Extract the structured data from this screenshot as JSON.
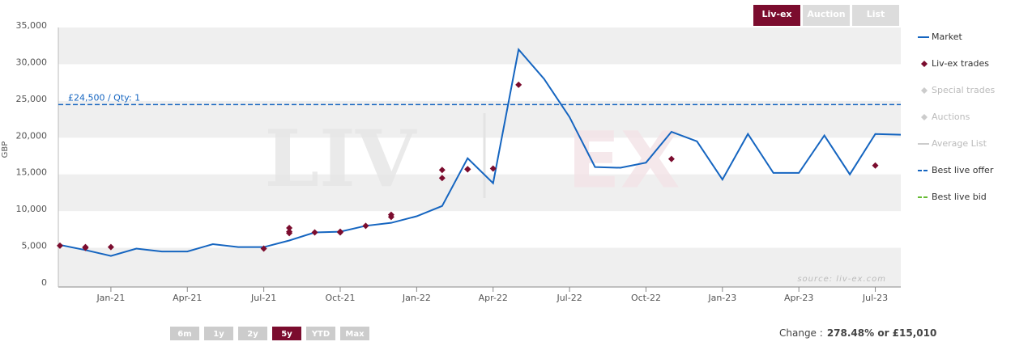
{
  "chart_data": {
    "type": "line",
    "y_label": "GBP",
    "watermark_left": "LIV",
    "watermark_right": "EX",
    "source": "source: liv-ex.com",
    "xlim": [
      "Nov-20",
      "Aug-23"
    ],
    "xticks": [
      "Jan-21",
      "Apr-21",
      "Jul-21",
      "Oct-21",
      "Jan-22",
      "Apr-22",
      "Jul-22",
      "Oct-22",
      "Jan-23",
      "Apr-23",
      "Jul-23"
    ],
    "ylim": [
      0,
      35000
    ],
    "yticks": [
      0,
      {
        "value": 5000,
        "label": "5,000"
      },
      {
        "value": 10000,
        "label": "10,000"
      },
      {
        "value": 15000,
        "label": "15,000"
      },
      {
        "value": 20000,
        "label": "20,000"
      },
      {
        "value": 25000,
        "label": "25,000"
      },
      {
        "value": 30000,
        "label": "30,000"
      },
      {
        "value": 35000,
        "label": "35,000"
      }
    ],
    "banded_grid": true,
    "series": [
      {
        "name": "Market",
        "kind": "line",
        "color": "#1565c0",
        "visible": true,
        "x": [
          "Nov-20",
          "Dec-20",
          "Jan-21",
          "Feb-21",
          "Mar-21",
          "Apr-21",
          "May-21",
          "Jun-21",
          "Jul-21",
          "Aug-21",
          "Sep-21",
          "Oct-21",
          "Nov-21",
          "Dec-21",
          "Jan-22",
          "Feb-22",
          "Mar-22",
          "Apr-22",
          "May-22",
          "Jun-22",
          "Jul-22",
          "Aug-22",
          "Sep-22",
          "Oct-22",
          "Nov-22",
          "Dec-22",
          "Jan-23",
          "Feb-23",
          "Mar-23",
          "Apr-23",
          "May-23",
          "Jun-23",
          "Jul-23",
          "Aug-23"
        ],
        "values": [
          5390,
          4700,
          3900,
          4900,
          4500,
          4500,
          5500,
          5100,
          5100,
          6000,
          7100,
          7200,
          8000,
          8400,
          9300,
          10700,
          17200,
          13800,
          32000,
          28000,
          22800,
          16000,
          15900,
          16600,
          20800,
          19500,
          14300,
          20500,
          15200,
          15200,
          20300,
          15000,
          20500,
          20400
        ]
      },
      {
        "name": "Liv-ex trades",
        "kind": "scatter",
        "color": "#7b0c2e",
        "visible": true,
        "x": [
          "Nov-20",
          "Dec-20",
          "Dec-20",
          "Jan-21",
          "Jul-21",
          "Aug-21",
          "Aug-21",
          "Aug-21",
          "Sep-21",
          "Oct-21",
          "Oct-21",
          "Nov-21",
          "Dec-21",
          "Dec-21",
          "Feb-22",
          "Feb-22",
          "Mar-22",
          "Mar-22",
          "Mar-22",
          "Apr-22",
          "May-22",
          "Nov-22",
          "Jul-23"
        ],
        "values": [
          5300,
          5100,
          5000,
          5100,
          4900,
          7700,
          7200,
          7000,
          7100,
          7100,
          7200,
          8000,
          9500,
          9200,
          14500,
          15600,
          15700,
          15700,
          15700,
          15800,
          27200,
          17100,
          16200
        ]
      },
      {
        "name": "Special trades",
        "kind": "scatter",
        "color": "#cccccc",
        "visible": false,
        "x": [],
        "values": []
      },
      {
        "name": "Auctions",
        "kind": "scatter",
        "color": "#cccccc",
        "visible": false,
        "x": [],
        "values": []
      },
      {
        "name": "Average List",
        "kind": "line",
        "color": "#cccccc",
        "visible": false,
        "x": [],
        "values": []
      },
      {
        "name": "Best live offer",
        "kind": "hline",
        "color": "#1565c0",
        "visible": true,
        "value": 24500,
        "label": "£24,500 / Qty: 1"
      },
      {
        "name": "Best live bid",
        "kind": "hline",
        "color": "#66bb33",
        "visible": true,
        "value": null
      }
    ],
    "legend": "right",
    "source_buttons": [
      "Liv-ex",
      "Auction",
      "List"
    ],
    "source_active": 0,
    "range_buttons": [
      "6m",
      "1y",
      "2y",
      "5y",
      "YTD",
      "Max"
    ],
    "range_active": 3,
    "change_label": "Change :",
    "change_value": "278.48% or £15,010"
  }
}
